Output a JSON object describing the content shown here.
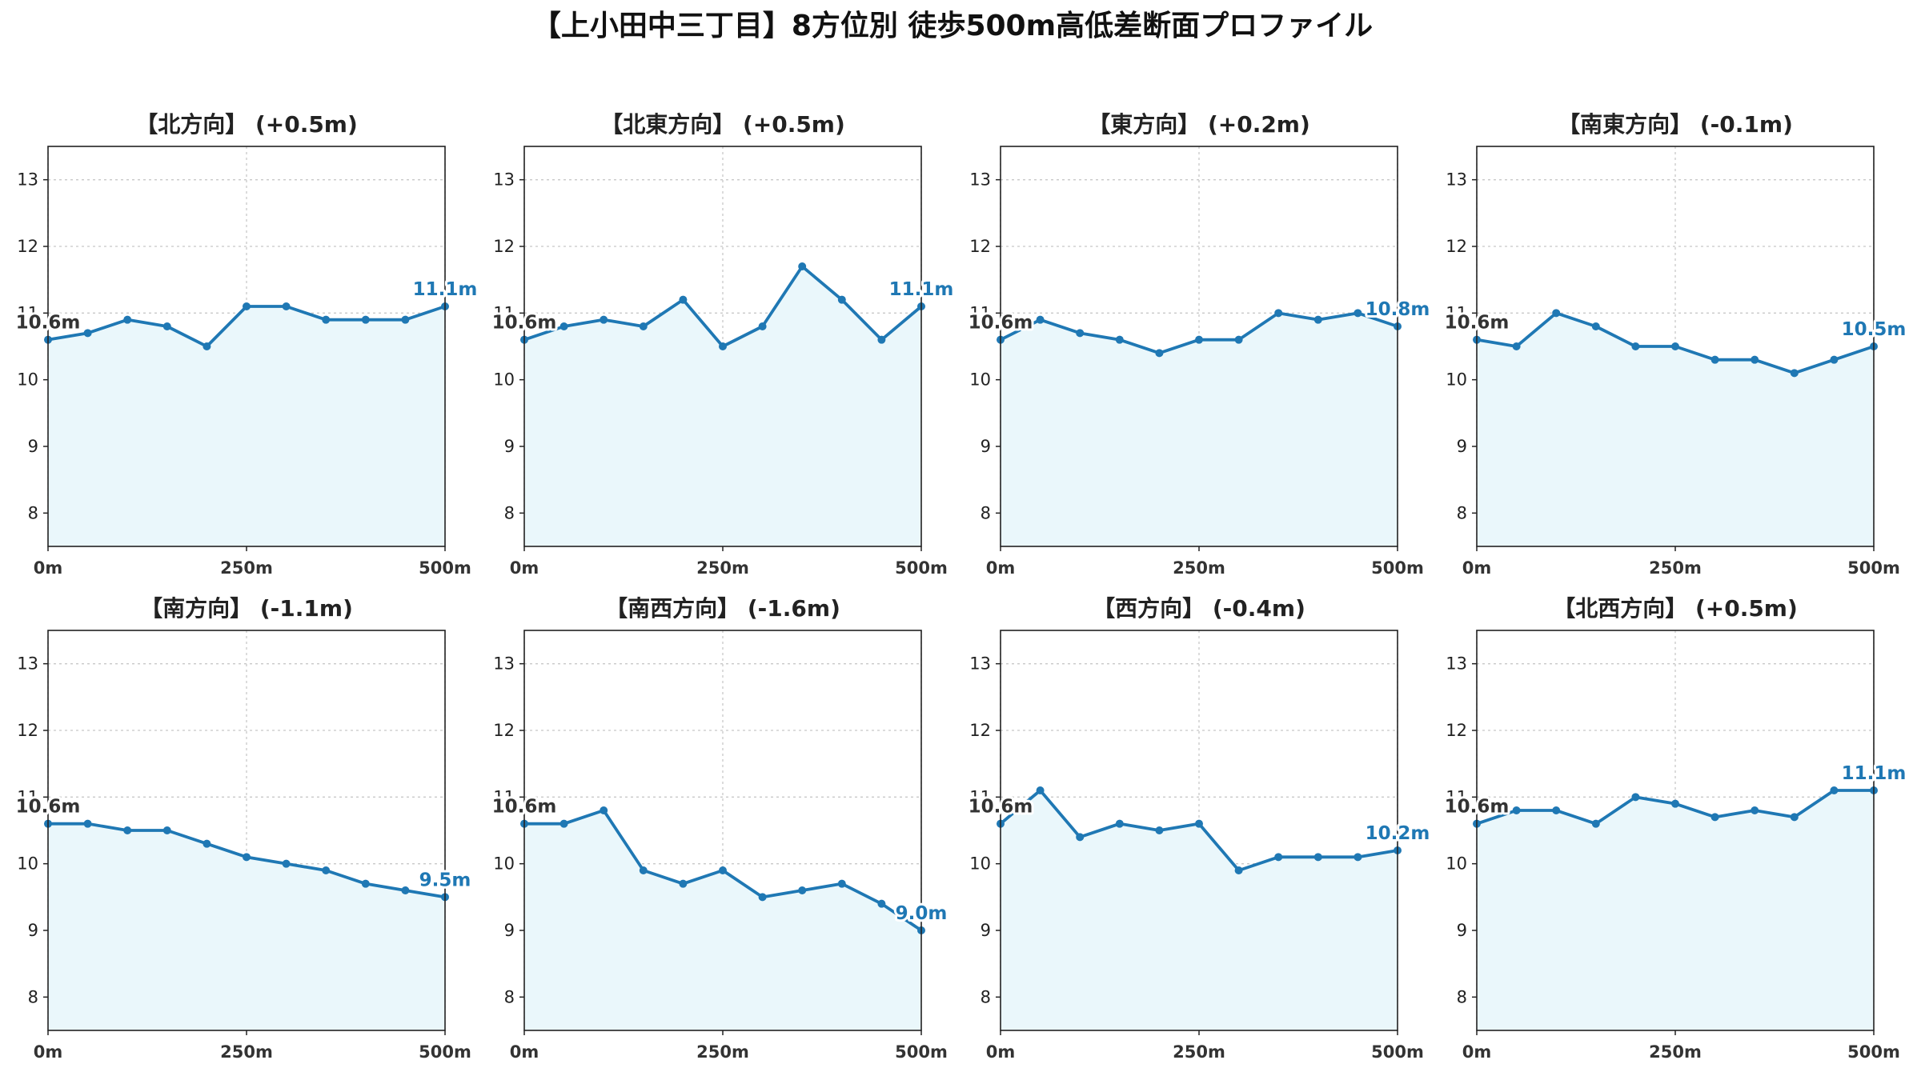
{
  "title": "【上小田中三丁目】8方位別 徒歩500m高低差断面プロファイル",
  "chart_data": [
    {
      "type": "area",
      "title": "【北方向】 (+0.5m)",
      "x": [
        0,
        50,
        100,
        150,
        200,
        250,
        300,
        350,
        400,
        450,
        500
      ],
      "values": [
        10.6,
        10.7,
        10.9,
        10.8,
        10.5,
        11.1,
        11.1,
        10.9,
        10.9,
        10.9,
        11.1
      ],
      "start_label": "10.6m",
      "end_label": "11.1m",
      "xticks": [
        "0m",
        "250m",
        "500m"
      ],
      "yticks": [
        "8",
        "9",
        "10",
        "11",
        "12",
        "13"
      ],
      "xlim": [
        0,
        500
      ],
      "ylim": [
        7.5,
        13.5
      ],
      "grid": true
    },
    {
      "type": "area",
      "title": "【北東方向】 (+0.5m)",
      "x": [
        0,
        50,
        100,
        150,
        200,
        250,
        300,
        350,
        400,
        450,
        500
      ],
      "values": [
        10.6,
        10.8,
        10.9,
        10.8,
        11.2,
        10.5,
        10.8,
        11.7,
        11.2,
        10.6,
        11.1
      ],
      "start_label": "10.6m",
      "end_label": "11.1m",
      "xticks": [
        "0m",
        "250m",
        "500m"
      ],
      "yticks": [
        "8",
        "9",
        "10",
        "11",
        "12",
        "13"
      ],
      "xlim": [
        0,
        500
      ],
      "ylim": [
        7.5,
        13.5
      ],
      "grid": true
    },
    {
      "type": "area",
      "title": "【東方向】 (+0.2m)",
      "x": [
        0,
        50,
        100,
        150,
        200,
        250,
        300,
        350,
        400,
        450,
        500
      ],
      "values": [
        10.6,
        10.9,
        10.7,
        10.6,
        10.4,
        10.6,
        10.6,
        11.0,
        10.9,
        11.0,
        10.8
      ],
      "start_label": "10.6m",
      "end_label": "10.8m",
      "xticks": [
        "0m",
        "250m",
        "500m"
      ],
      "yticks": [
        "8",
        "9",
        "10",
        "11",
        "12",
        "13"
      ],
      "xlim": [
        0,
        500
      ],
      "ylim": [
        7.5,
        13.5
      ],
      "grid": true
    },
    {
      "type": "area",
      "title": "【南東方向】 (-0.1m)",
      "x": [
        0,
        50,
        100,
        150,
        200,
        250,
        300,
        350,
        400,
        450,
        500
      ],
      "values": [
        10.6,
        10.5,
        11.0,
        10.8,
        10.5,
        10.5,
        10.3,
        10.3,
        10.1,
        10.3,
        10.5
      ],
      "start_label": "10.6m",
      "end_label": "10.5m",
      "xticks": [
        "0m",
        "250m",
        "500m"
      ],
      "yticks": [
        "8",
        "9",
        "10",
        "11",
        "12",
        "13"
      ],
      "xlim": [
        0,
        500
      ],
      "ylim": [
        7.5,
        13.5
      ],
      "grid": true
    },
    {
      "type": "area",
      "title": "【南方向】 (-1.1m)",
      "x": [
        0,
        50,
        100,
        150,
        200,
        250,
        300,
        350,
        400,
        450,
        500
      ],
      "values": [
        10.6,
        10.6,
        10.5,
        10.5,
        10.3,
        10.1,
        10.0,
        9.9,
        9.7,
        9.6,
        9.5
      ],
      "start_label": "10.6m",
      "end_label": "9.5m",
      "xticks": [
        "0m",
        "250m",
        "500m"
      ],
      "yticks": [
        "8",
        "9",
        "10",
        "11",
        "12",
        "13"
      ],
      "xlim": [
        0,
        500
      ],
      "ylim": [
        7.5,
        13.5
      ],
      "grid": true
    },
    {
      "type": "area",
      "title": "【南西方向】 (-1.6m)",
      "x": [
        0,
        50,
        100,
        150,
        200,
        250,
        300,
        350,
        400,
        450,
        500
      ],
      "values": [
        10.6,
        10.6,
        10.8,
        9.9,
        9.7,
        9.9,
        9.5,
        9.6,
        9.7,
        9.4,
        9.0
      ],
      "start_label": "10.6m",
      "end_label": "9.0m",
      "xticks": [
        "0m",
        "250m",
        "500m"
      ],
      "yticks": [
        "8",
        "9",
        "10",
        "11",
        "12",
        "13"
      ],
      "xlim": [
        0,
        500
      ],
      "ylim": [
        7.5,
        13.5
      ],
      "grid": true
    },
    {
      "type": "area",
      "title": "【西方向】 (-0.4m)",
      "x": [
        0,
        50,
        100,
        150,
        200,
        250,
        300,
        350,
        400,
        450,
        500
      ],
      "values": [
        10.6,
        11.1,
        10.4,
        10.6,
        10.5,
        10.6,
        9.9,
        10.1,
        10.1,
        10.1,
        10.2
      ],
      "start_label": "10.6m",
      "end_label": "10.2m",
      "xticks": [
        "0m",
        "250m",
        "500m"
      ],
      "yticks": [
        "8",
        "9",
        "10",
        "11",
        "12",
        "13"
      ],
      "xlim": [
        0,
        500
      ],
      "ylim": [
        7.5,
        13.5
      ],
      "grid": true
    },
    {
      "type": "area",
      "title": "【北西方向】 (+0.5m)",
      "x": [
        0,
        50,
        100,
        150,
        200,
        250,
        300,
        350,
        400,
        450,
        500
      ],
      "values": [
        10.6,
        10.8,
        10.8,
        10.6,
        11.0,
        10.9,
        10.7,
        10.8,
        10.7,
        11.1,
        11.1
      ],
      "start_label": "10.6m",
      "end_label": "11.1m",
      "xticks": [
        "0m",
        "250m",
        "500m"
      ],
      "yticks": [
        "8",
        "9",
        "10",
        "11",
        "12",
        "13"
      ],
      "xlim": [
        0,
        500
      ],
      "ylim": [
        7.5,
        13.5
      ],
      "grid": true
    }
  ],
  "colors": {
    "line": "#1f78b4",
    "fill": "#eaf7fb",
    "grid": "#c8c8c8",
    "axis": "#222222",
    "start_label": "#333333",
    "end_label": "#1f78b4"
  }
}
